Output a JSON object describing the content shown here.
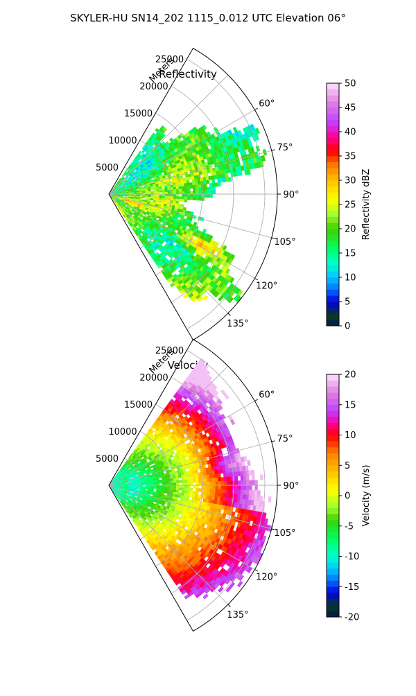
{
  "title": "SKYLER-HU  SN14_202  1115_0.012 UTC Elevation 06°",
  "chart_data": [
    {
      "type": "heatmap",
      "subtype": "polar-sector",
      "title": "Reflectivity",
      "radial_label": "Meters",
      "range_ticks": [
        "5000",
        "10000",
        "15000",
        "20000",
        "25000"
      ],
      "azimuth_ticks": [
        "60°",
        "75°",
        "90°",
        "105°",
        "120°",
        "135°"
      ],
      "azimuth_range_deg": [
        30,
        150
      ],
      "range_max_m": 27000,
      "grid": true,
      "colorbar": {
        "label": "Reflectivity dBZ",
        "min": 0,
        "max": 50,
        "ticks": [
          "0",
          "5",
          "10",
          "15",
          "20",
          "25",
          "30",
          "35",
          "40",
          "45",
          "50"
        ],
        "stops": [
          {
            "v": 0,
            "c": "#001a4a"
          },
          {
            "v": 2,
            "c": "#0a3a2a"
          },
          {
            "v": 5,
            "c": "#0000e0"
          },
          {
            "v": 7.5,
            "c": "#0070ff"
          },
          {
            "v": 10,
            "c": "#00c8ff"
          },
          {
            "v": 13,
            "c": "#00ffcc"
          },
          {
            "v": 16,
            "c": "#00ff60"
          },
          {
            "v": 20,
            "c": "#40d000"
          },
          {
            "v": 23,
            "c": "#a0ff30"
          },
          {
            "v": 26,
            "c": "#ffff00"
          },
          {
            "v": 30,
            "c": "#ffc000"
          },
          {
            "v": 33,
            "c": "#ff8000"
          },
          {
            "v": 36,
            "c": "#ff0000"
          },
          {
            "v": 39,
            "c": "#ff00a0"
          },
          {
            "v": 42,
            "c": "#c040ff"
          },
          {
            "v": 46,
            "c": "#e080e0"
          },
          {
            "v": 50,
            "c": "#ffe0ff"
          }
        ]
      }
    },
    {
      "type": "heatmap",
      "subtype": "polar-sector",
      "title": "Velocity",
      "radial_label": "Meters",
      "range_ticks": [
        "5000",
        "10000",
        "15000",
        "20000",
        "25000"
      ],
      "azimuth_ticks": [
        "60°",
        "75°",
        "90°",
        "105°",
        "120°",
        "135°"
      ],
      "azimuth_range_deg": [
        30,
        150
      ],
      "range_max_m": 27000,
      "grid": true,
      "colorbar": {
        "label": "Velocity (m/s)",
        "min": -20,
        "max": 20,
        "ticks": [
          "-20",
          "-15",
          "-10",
          "-5",
          "0",
          "5",
          "10",
          "15",
          "20"
        ],
        "stops": [
          {
            "v": -20,
            "c": "#001a4a"
          },
          {
            "v": -18,
            "c": "#0a3a2a"
          },
          {
            "v": -16,
            "c": "#0000e0"
          },
          {
            "v": -14,
            "c": "#0070ff"
          },
          {
            "v": -12,
            "c": "#00c8ff"
          },
          {
            "v": -10,
            "c": "#00ffcc"
          },
          {
            "v": -7,
            "c": "#00ff60"
          },
          {
            "v": -4,
            "c": "#40d000"
          },
          {
            "v": -2,
            "c": "#a0ff30"
          },
          {
            "v": 1,
            "c": "#ffff00"
          },
          {
            "v": 4,
            "c": "#ffc000"
          },
          {
            "v": 7,
            "c": "#ff8000"
          },
          {
            "v": 10,
            "c": "#ff0000"
          },
          {
            "v": 12,
            "c": "#ff00a0"
          },
          {
            "v": 14,
            "c": "#c040ff"
          },
          {
            "v": 17,
            "c": "#e080e0"
          },
          {
            "v": 20,
            "c": "#ffe0ff"
          }
        ]
      }
    }
  ]
}
